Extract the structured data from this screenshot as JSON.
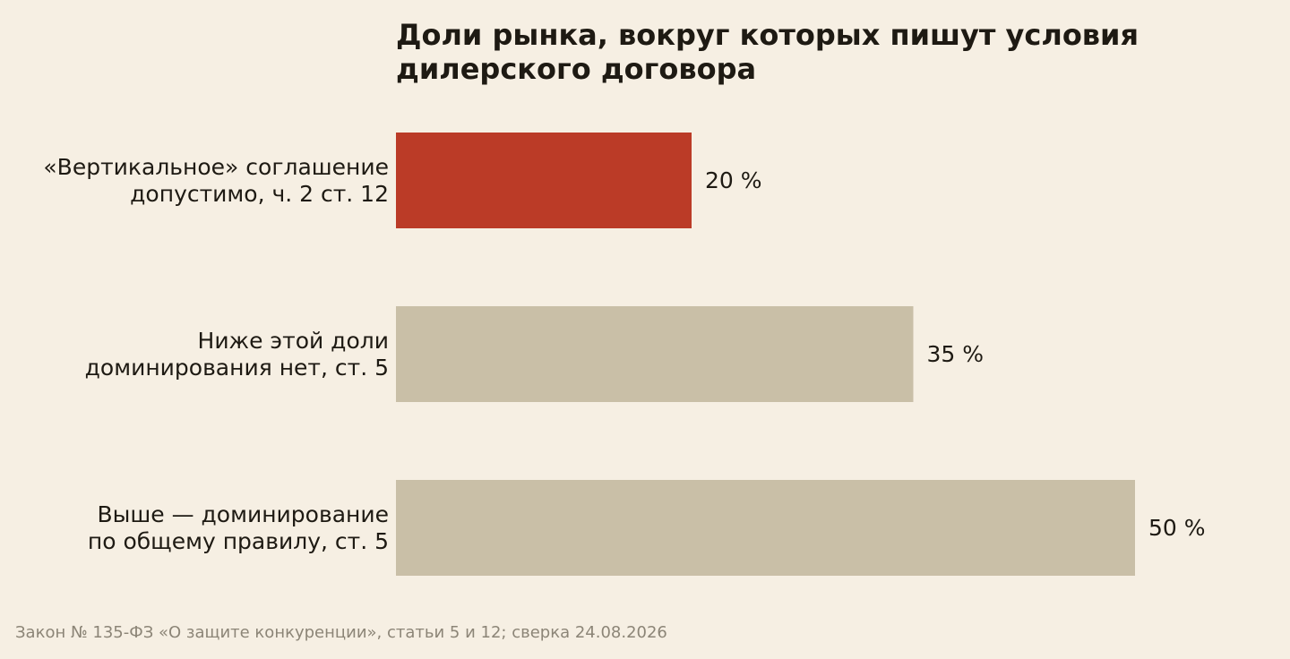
{
  "chart_data": {
    "type": "bar",
    "orientation": "horizontal",
    "title_lines": [
      "Доли рынка, вокруг которых пишут условия",
      "дилерского договора"
    ],
    "categories": [
      [
        "«Вертикальное» соглашение",
        "допустимо, ч. 2 ст. 12"
      ],
      [
        "Ниже этой доли",
        "доминирования нет, ст. 5"
      ],
      [
        "Выше — доминирование",
        "по общему правилу, ст. 5"
      ]
    ],
    "values": [
      20,
      35,
      50
    ],
    "value_labels": [
      "20 %",
      "35 %",
      "50 %"
    ],
    "colors": [
      "#bb3b27",
      "#c9bfa7",
      "#c9bfa7"
    ],
    "xlim": [
      0,
      50
    ],
    "grid": false,
    "legend": "none"
  },
  "source": "Закон № 135-ФЗ «О защите конкуренции», статьи 5 и 12; сверка 24.08.2026"
}
